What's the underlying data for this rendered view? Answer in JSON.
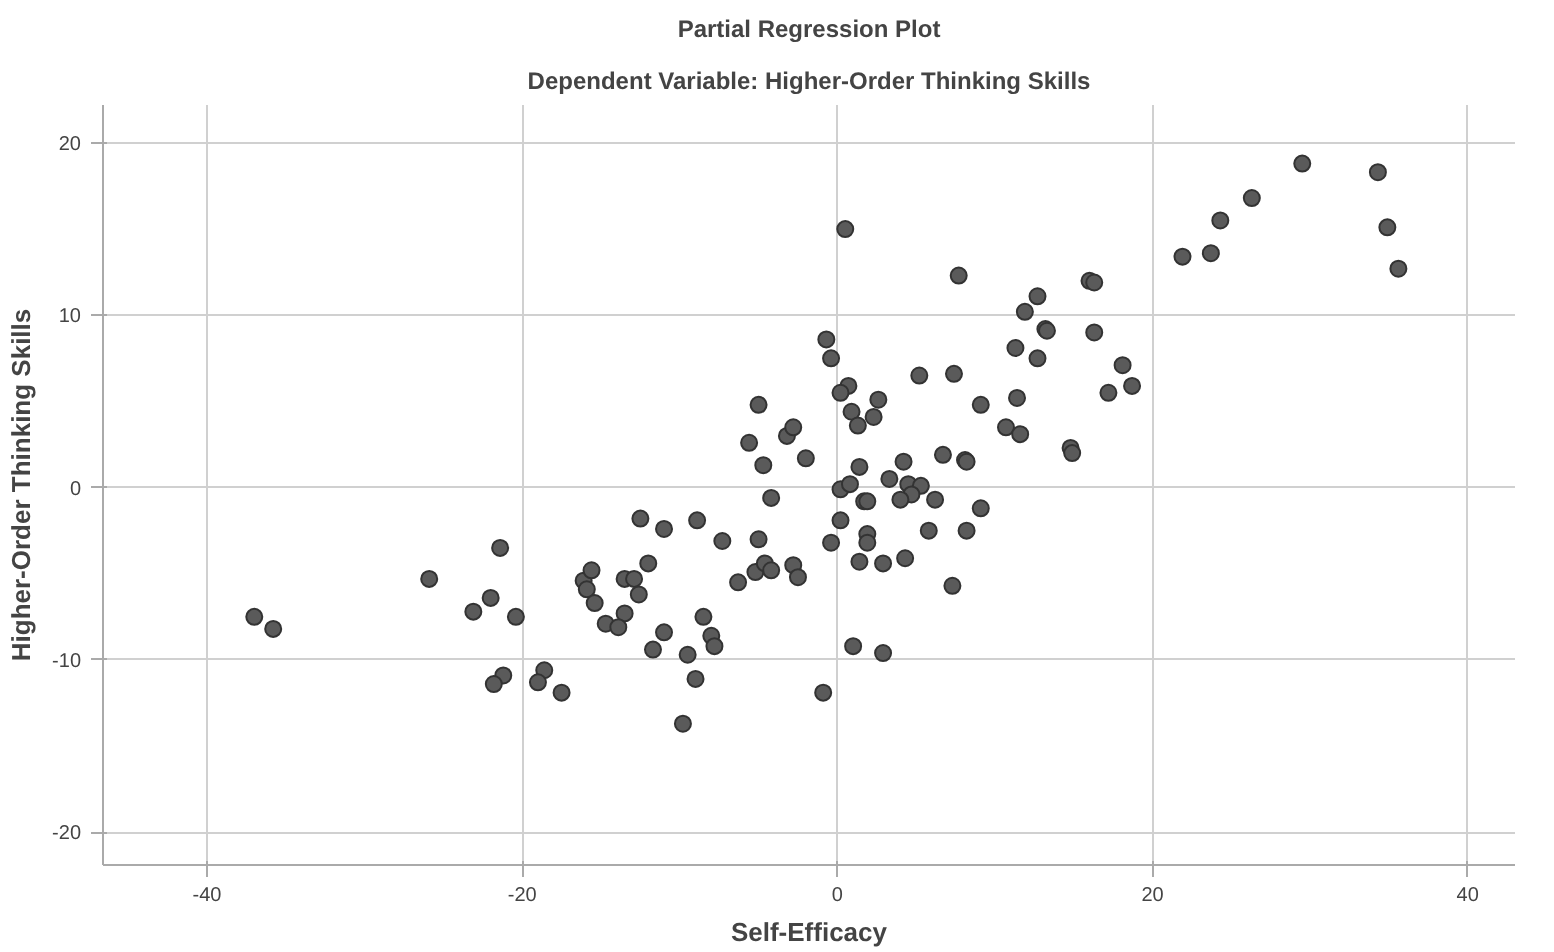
{
  "chart_data": {
    "type": "scatter",
    "title": "Partial Regression Plot",
    "subtitle": "Dependent Variable: Higher-Order Thinking Skills",
    "xlabel": "Self-Efficacy",
    "ylabel": "Higher-Order Thinking Skills",
    "marker": "circle",
    "grid": true,
    "legend": false,
    "xlim": [
      -46.6,
      43
    ],
    "ylim": [
      -21.9,
      22.2
    ],
    "xticks": [
      -40,
      -20,
      0,
      20,
      40
    ],
    "yticks": [
      -20,
      -10,
      0,
      10,
      20
    ],
    "x": [
      -37.0,
      -35.8,
      -25.9,
      -21.4,
      -22.0,
      -23.1,
      -20.4,
      -21.2,
      -21.8,
      -18.6,
      -19.0,
      -17.5,
      -16.1,
      -15.6,
      -15.9,
      -15.4,
      -5.0,
      -5.6,
      -4.7,
      -3.2,
      -2.8,
      -2.0,
      -4.2,
      1.4,
      0.2,
      0.8,
      1.7,
      0.2,
      -0.4,
      1.4,
      1.0,
      -0.9,
      -12.5,
      -11.0,
      -8.9,
      -7.3,
      -5.0,
      -12.0,
      -13.5,
      -12.9,
      -12.6,
      -13.5,
      -14.7,
      -13.9,
      -11.0,
      -11.7,
      -8.5,
      -8.0,
      -7.8,
      -9.5,
      -9.0,
      -9.8,
      -6.3,
      -5.2,
      -4.6,
      -4.2,
      -2.8,
      -2.5,
      0.5,
      7.7,
      16.0,
      16.3,
      12.7,
      11.9,
      13.2,
      13.3,
      16.3,
      11.3,
      12.7,
      18.1,
      17.2,
      18.7,
      -0.7,
      -0.4,
      5.2,
      7.4,
      0.7,
      0.2,
      2.6,
      0.9,
      1.3,
      2.3,
      9.1,
      11.4,
      10.7,
      11.6,
      14.8,
      14.9,
      6.7,
      8.1,
      8.2,
      4.2,
      3.3,
      4.5,
      5.3,
      4.7,
      4.0,
      6.2,
      1.9,
      9.1,
      1.9,
      1.9,
      5.8,
      8.2,
      2.9,
      4.3,
      7.3,
      2.9,
      21.9,
      23.7,
      24.3,
      26.3,
      29.5,
      34.3,
      34.9,
      35.6
    ],
    "values": [
      -7.5,
      -8.2,
      -5.3,
      -3.5,
      -6.4,
      -7.2,
      -7.5,
      -10.9,
      -11.4,
      -10.6,
      -11.3,
      -11.9,
      -5.4,
      -4.8,
      -5.9,
      -6.7,
      4.8,
      2.6,
      1.3,
      3.0,
      3.5,
      1.7,
      -0.6,
      1.2,
      -0.1,
      0.2,
      -0.8,
      -1.9,
      -3.2,
      -4.3,
      -9.2,
      -11.9,
      -1.8,
      -2.4,
      -1.9,
      -3.1,
      -3.0,
      -4.4,
      -5.3,
      -5.3,
      -6.2,
      -7.3,
      -7.9,
      -8.1,
      -8.4,
      -9.4,
      -7.5,
      -8.6,
      -9.2,
      -9.7,
      -11.1,
      -13.7,
      -5.5,
      -4.9,
      -4.4,
      -4.8,
      -4.5,
      -5.2,
      15.0,
      12.3,
      12.0,
      11.9,
      11.1,
      10.2,
      9.2,
      9.1,
      9.0,
      8.1,
      7.5,
      7.1,
      5.5,
      5.9,
      8.6,
      7.5,
      6.5,
      6.6,
      5.9,
      5.5,
      5.1,
      4.4,
      3.6,
      4.1,
      4.8,
      5.2,
      3.5,
      3.1,
      2.3,
      2.0,
      1.9,
      1.6,
      1.5,
      1.5,
      0.5,
      0.2,
      0.1,
      -0.4,
      -0.7,
      -0.7,
      -0.8,
      -1.2,
      -2.7,
      -3.2,
      -2.5,
      -2.5,
      -4.4,
      -4.1,
      -5.7,
      -9.6,
      13.4,
      13.6,
      15.5,
      16.8,
      18.8,
      18.3,
      15.1,
      12.7
    ],
    "color": "#5a5a5a"
  }
}
